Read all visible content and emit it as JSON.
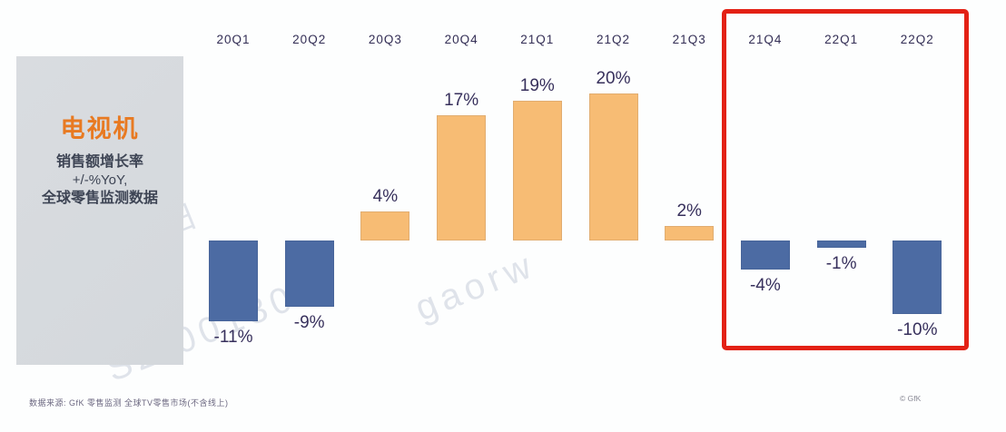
{
  "panel": {
    "title": "电视机",
    "line1": "销售额增长率",
    "line2": "+/-%YoY,",
    "line3": "全球零售监测数据"
  },
  "chart_data": {
    "type": "bar",
    "title": "电视机 销售额增长率 +/-%YoY, 全球零售监测数据",
    "categories": [
      "20Q1",
      "20Q2",
      "20Q3",
      "20Q4",
      "21Q1",
      "21Q2",
      "21Q3",
      "21Q4",
      "22Q1",
      "22Q2"
    ],
    "values": [
      -11,
      -9,
      4,
      17,
      19,
      20,
      2,
      -4,
      -1,
      -10
    ],
    "value_labels": [
      "-11%",
      "-9%",
      "4%",
      "17%",
      "19%",
      "20%",
      "2%",
      "-4%",
      "-1%",
      "-10%"
    ],
    "unit": "% YoY",
    "ylim": [
      -13,
      22
    ],
    "grid": false,
    "legend": "none",
    "positive_color": "#f7bc74",
    "negative_color": "#4c6ba3",
    "label_color": "#37305c",
    "highlight_range": [
      "21Q4",
      "22Q2"
    ],
    "highlight_color": "#e32115"
  },
  "watermark": {
    "frag1": "以旧",
    "frag2": "SZ 001300",
    "frag3": "gaorw"
  },
  "footer": {
    "source_note": "数据来源: GfK 零售监测  全球TV零售市场(不含线上)",
    "copyright": "© GfK"
  }
}
